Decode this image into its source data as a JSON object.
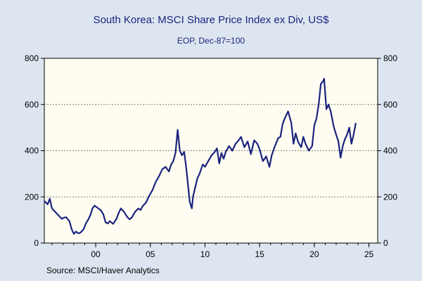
{
  "chart_data": {
    "type": "line",
    "title": "South Korea: MSCI Share Price Index ex Div, US$",
    "subtitle": "EOP, Dec-87=100",
    "xlabel": "",
    "ylabel": "",
    "xlim": [
      1995.3,
      2025.8
    ],
    "ylim": [
      0,
      800
    ],
    "x_ticks": [
      2000,
      2005,
      2010,
      2015,
      2020,
      2025
    ],
    "x_tick_labels": [
      "00",
      "05",
      "10",
      "15",
      "20",
      "25"
    ],
    "y_ticks": [
      0,
      200,
      400,
      600,
      800
    ],
    "y_tick_labels": [
      "0",
      "200",
      "400",
      "600",
      "800"
    ],
    "grid": "horizontal dashed at 200, 400, 600",
    "legend": "none",
    "series": [
      {
        "color": "#1a237e",
        "x": [
          1995.3,
          1995.6,
          1995.8,
          1996.0,
          1996.3,
          1996.6,
          1996.9,
          1997.1,
          1997.3,
          1997.6,
          1997.8,
          1998.0,
          1998.2,
          1998.4,
          1998.6,
          1998.9,
          1999.1,
          1999.3,
          1999.5,
          1999.7,
          1999.9,
          2000.1,
          2000.3,
          2000.5,
          2000.7,
          2000.9,
          2001.1,
          2001.3,
          2001.6,
          2001.9,
          2002.1,
          2002.3,
          2002.6,
          2002.9,
          2003.1,
          2003.3,
          2003.6,
          2003.9,
          2004.1,
          2004.3,
          2004.6,
          2004.9,
          2005.2,
          2005.5,
          2005.8,
          2006.1,
          2006.4,
          2006.7,
          2006.9,
          2007.1,
          2007.3,
          2007.5,
          2007.7,
          2007.9,
          2008.1,
          2008.3,
          2008.6,
          2008.8,
          2008.9,
          2009.1,
          2009.3,
          2009.5,
          2009.8,
          2010.0,
          2010.3,
          2010.6,
          2010.9,
          2011.1,
          2011.3,
          2011.5,
          2011.7,
          2011.9,
          2012.2,
          2012.5,
          2012.8,
          2013.0,
          2013.3,
          2013.6,
          2013.9,
          2014.2,
          2014.5,
          2014.8,
          2015.0,
          2015.3,
          2015.6,
          2015.9,
          2016.1,
          2016.4,
          2016.7,
          2016.9,
          2017.1,
          2017.3,
          2017.6,
          2017.9,
          2018.1,
          2018.3,
          2018.5,
          2018.8,
          2019.0,
          2019.2,
          2019.5,
          2019.8,
          2020.0,
          2020.2,
          2020.4,
          2020.6,
          2020.8,
          2020.9,
          2021.1,
          2021.3,
          2021.5,
          2021.8,
          2022.0,
          2022.2,
          2022.4,
          2022.6,
          2022.8,
          2023.0,
          2023.2,
          2023.4,
          2023.6,
          2023.8
        ],
        "values": [
          182,
          168,
          192,
          150,
          135,
          120,
          105,
          110,
          112,
          95,
          60,
          40,
          50,
          42,
          45,
          60,
          85,
          100,
          120,
          150,
          162,
          155,
          148,
          140,
          125,
          90,
          85,
          95,
          83,
          105,
          130,
          150,
          135,
          112,
          103,
          110,
          135,
          150,
          143,
          160,
          175,
          205,
          230,
          265,
          290,
          320,
          330,
          310,
          340,
          355,
          390,
          490,
          400,
          380,
          395,
          320,
          180,
          150,
          200,
          240,
          280,
          300,
          340,
          330,
          355,
          380,
          395,
          410,
          345,
          390,
          365,
          395,
          420,
          400,
          430,
          440,
          460,
          415,
          440,
          385,
          445,
          430,
          405,
          355,
          375,
          330,
          380,
          420,
          455,
          460,
          515,
          540,
          570,
          520,
          430,
          475,
          440,
          415,
          460,
          430,
          400,
          420,
          510,
          540,
          600,
          690,
          700,
          712,
          580,
          600,
          570,
          500,
          470,
          440,
          370,
          420,
          450,
          470,
          500,
          430,
          470,
          520
        ]
      }
    ],
    "source": "Source:  MSCI/Haver Analytics"
  }
}
